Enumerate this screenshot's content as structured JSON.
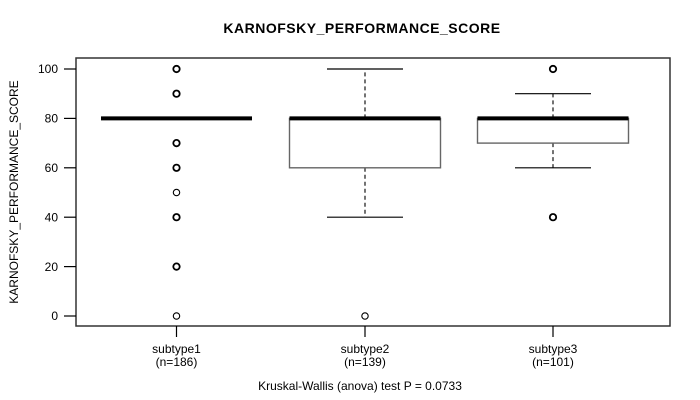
{
  "page": {
    "title": "KARNOFSKY_PERFORMANCE_SCORE",
    "footer": "Kruskal-Wallis (anova) test P = 0.0733"
  },
  "colors": {
    "foreground": "#000000",
    "background": "#ffffff",
    "box_border": "#666666",
    "axis_border": "#333333"
  },
  "chart_data": {
    "type": "boxplot",
    "title": "KARNOFSKY_PERFORMANCE_SCORE",
    "ylabel": "KARNOFSKY_PERFORMANCE_SCORE",
    "xlabel": "",
    "ylim": [
      0,
      100
    ],
    "yticks": [
      0,
      20,
      40,
      60,
      80,
      100
    ],
    "ytick_labels": [
      "0",
      "20",
      "40",
      "60",
      "80",
      "100"
    ],
    "grid": false,
    "legend": null,
    "annotation": "Kruskal-Wallis (anova) test P = 0.0733",
    "groups": [
      {
        "label": "subtype1",
        "n_label": "(n=186)",
        "n": 186,
        "median": 80,
        "q1": 80,
        "q3": 80,
        "whisker_low": 80,
        "whisker_high": 80,
        "outliers": [
          {
            "value": 100,
            "bold": true
          },
          {
            "value": 90,
            "bold": true
          },
          {
            "value": 70,
            "bold": true
          },
          {
            "value": 60,
            "bold": true
          },
          {
            "value": 50,
            "bold": false
          },
          {
            "value": 40,
            "bold": true
          },
          {
            "value": 20,
            "bold": true
          },
          {
            "value": 0,
            "bold": false
          }
        ]
      },
      {
        "label": "subtype2",
        "n_label": "(n=139)",
        "n": 139,
        "median": 80,
        "q1": 60,
        "q3": 80,
        "whisker_low": 40,
        "whisker_high": 100,
        "outliers": [
          {
            "value": 0,
            "bold": false
          }
        ]
      },
      {
        "label": "subtype3",
        "n_label": "(n=101)",
        "n": 101,
        "median": 80,
        "q1": 70,
        "q3": 80,
        "whisker_low": 60,
        "whisker_high": 90,
        "outliers": [
          {
            "value": 100,
            "bold": true
          },
          {
            "value": 40,
            "bold": true
          }
        ]
      }
    ]
  }
}
